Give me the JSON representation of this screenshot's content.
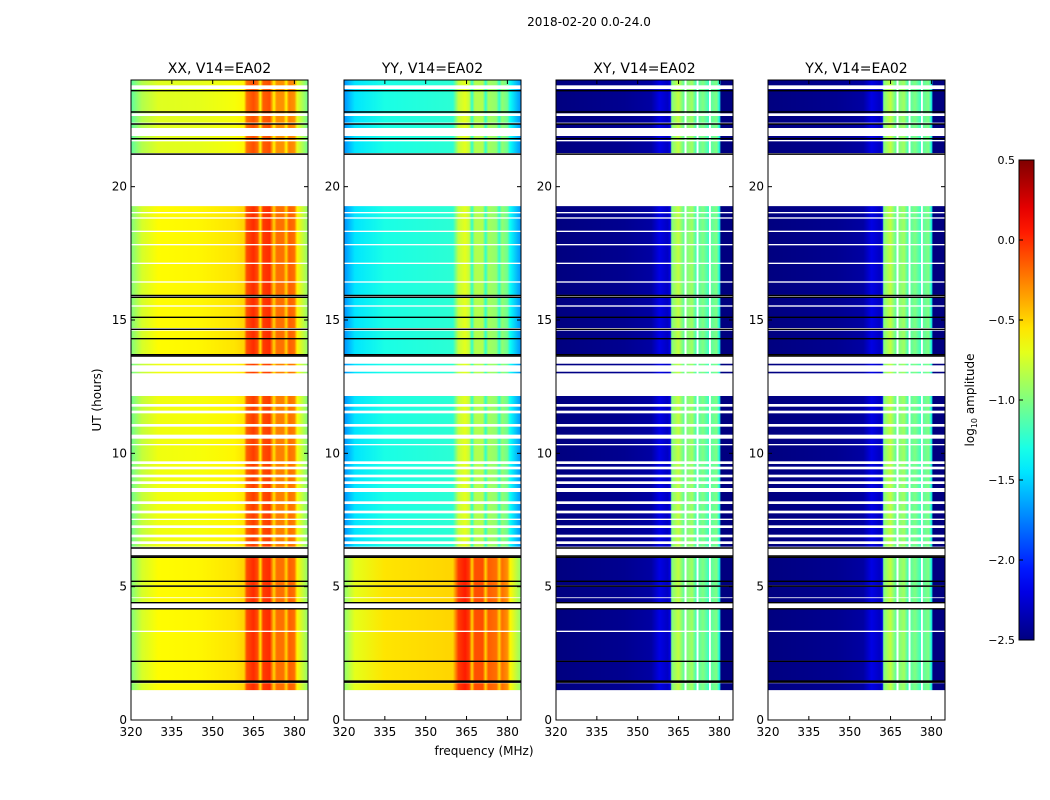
{
  "chart_data": {
    "type": "heatmap",
    "title": "2018-02-20 0.0-24.0",
    "xlabel": "frequency (MHz)",
    "ylabel": "UT (hours)",
    "xlim": [
      320,
      385
    ],
    "ylim": [
      0,
      24
    ],
    "xticks": [
      320,
      335,
      350,
      365,
      380
    ],
    "xtick_labels": [
      "320",
      "335",
      "350",
      "365",
      "380"
    ],
    "yticks": [
      0,
      5,
      10,
      15,
      20
    ],
    "ytick_labels": [
      "0",
      "5",
      "10",
      "15",
      "20"
    ],
    "colorbar": {
      "label_main": "log",
      "label_sub": "10",
      "label_rest": " amplitude",
      "vmin": -2.5,
      "vmax": 0.5,
      "colormap": "jet",
      "ticks": [
        0.5,
        0.0,
        -0.5,
        -1.0,
        -1.5,
        -2.0,
        -2.5
      ],
      "tick_labels": [
        "0.5",
        "0.0",
        "−0.5",
        "−1.0",
        "−1.5",
        "−2.0",
        "−2.5"
      ]
    },
    "data_segments_hours": [
      [
        1.12,
        1.38
      ],
      [
        1.48,
        2.2
      ],
      [
        2.22,
        3.3
      ],
      [
        3.35,
        4.16
      ],
      [
        4.42,
        4.57
      ],
      [
        4.6,
        5.0
      ],
      [
        5.05,
        6.1
      ],
      [
        6.5,
        6.6
      ],
      [
        6.7,
        6.85
      ],
      [
        6.95,
        7.2
      ],
      [
        7.3,
        7.5
      ],
      [
        7.55,
        7.75
      ],
      [
        7.85,
        8.1
      ],
      [
        8.2,
        8.55
      ],
      [
        8.7,
        8.85
      ],
      [
        8.95,
        9.1
      ],
      [
        9.2,
        9.4
      ],
      [
        9.5,
        9.6
      ],
      [
        9.7,
        10.3
      ],
      [
        10.35,
        10.55
      ],
      [
        10.7,
        11.0
      ],
      [
        11.1,
        11.5
      ],
      [
        11.6,
        11.75
      ],
      [
        11.85,
        12.15
      ],
      [
        13.0,
        13.06
      ],
      [
        13.3,
        13.36
      ],
      [
        13.72,
        14.6
      ],
      [
        14.7,
        15.5
      ],
      [
        15.55,
        15.86
      ],
      [
        15.94,
        16.4
      ],
      [
        16.45,
        17.1
      ],
      [
        17.15,
        17.8
      ],
      [
        17.85,
        18.3
      ],
      [
        18.35,
        18.8
      ],
      [
        18.85,
        19.0
      ],
      [
        19.05,
        19.27
      ],
      [
        21.26,
        21.7
      ],
      [
        21.75,
        21.9
      ],
      [
        22.2,
        22.35
      ],
      [
        22.4,
        22.65
      ],
      [
        22.75,
        23.6
      ],
      [
        23.62,
        23.66
      ],
      [
        23.8,
        24.0
      ]
    ],
    "black_lines_hours": [
      1.42,
      1.46,
      2.2,
      4.17,
      4.4,
      5.02,
      5.2,
      6.1,
      6.15,
      6.45,
      13.65,
      13.7,
      14.3,
      14.65,
      15.1,
      15.85,
      15.92,
      21.22,
      21.8,
      22.35,
      22.8,
      23.6
    ],
    "panels": [
      {
        "title": "XX, V14=EA02",
        "profile": [
          [
            320,
            -1.0
          ],
          [
            324,
            -0.75
          ],
          [
            330,
            -0.62
          ],
          [
            345,
            -0.6
          ],
          [
            358,
            -0.55
          ],
          [
            361.5,
            -0.5
          ],
          [
            362.5,
            -0.1
          ],
          [
            365,
            0.0
          ],
          [
            366.5,
            -0.1
          ],
          [
            367.5,
            -0.55
          ],
          [
            368.5,
            -0.05
          ],
          [
            371,
            0.0
          ],
          [
            372.5,
            -0.5
          ],
          [
            373.5,
            -0.2
          ],
          [
            376,
            -0.2
          ],
          [
            377,
            -0.5
          ],
          [
            378,
            -0.15
          ],
          [
            380,
            -0.2
          ],
          [
            381,
            -0.6
          ],
          [
            385,
            -0.95
          ]
        ],
        "time_offsets": [
          {
            "from": 6.2,
            "to": 13.6,
            "offset": -0.05
          },
          {
            "from": 21.0,
            "to": 24.0,
            "offset": -0.1
          }
        ]
      },
      {
        "title": "YY, V14=EA02",
        "profile": [
          [
            320,
            -0.95
          ],
          [
            324,
            -0.7
          ],
          [
            335,
            -0.55
          ],
          [
            350,
            -0.52
          ],
          [
            360,
            -0.5
          ],
          [
            362,
            -0.05
          ],
          [
            364.5,
            0.05
          ],
          [
            366,
            -0.05
          ],
          [
            367,
            -0.5
          ],
          [
            368,
            -0.1
          ],
          [
            371,
            -0.1
          ],
          [
            372,
            -0.5
          ],
          [
            373,
            -0.15
          ],
          [
            376,
            -0.2
          ],
          [
            377,
            -0.5
          ],
          [
            378,
            -0.2
          ],
          [
            380,
            -0.3
          ],
          [
            381,
            -0.6
          ],
          [
            385,
            -0.95
          ]
        ],
        "time_offsets": [
          {
            "from": 6.2,
            "to": 24.0,
            "offset": -0.75
          }
        ]
      },
      {
        "title": "XY, V14=EA02",
        "profile": [
          [
            320,
            -2.5
          ],
          [
            345,
            -2.45
          ],
          [
            355,
            -2.4
          ],
          [
            358,
            -2.2
          ],
          [
            361,
            -2.3
          ],
          [
            362,
            -2.2
          ],
          [
            362.5,
            -1.0
          ],
          [
            365,
            -0.8
          ],
          [
            367.1,
            -1.1
          ],
          [
            367.2,
            null
          ],
          [
            367.9,
            null
          ],
          [
            368,
            -1.0
          ],
          [
            370,
            -0.9
          ],
          [
            371.6,
            -1.2
          ],
          [
            371.7,
            null
          ],
          [
            372.3,
            null
          ],
          [
            372.4,
            -1.1
          ],
          [
            374,
            -1.0
          ],
          [
            376.1,
            -1.2
          ],
          [
            376.2,
            null
          ],
          [
            376.8,
            null
          ],
          [
            376.9,
            -1.1
          ],
          [
            379,
            -1.0
          ],
          [
            380,
            -1.3
          ],
          [
            380.6,
            -2.5
          ],
          [
            385,
            -2.5
          ]
        ],
        "time_offsets": []
      },
      {
        "title": "YX, V14=EA02",
        "profile": [
          [
            320,
            -2.5
          ],
          [
            345,
            -2.45
          ],
          [
            355,
            -2.4
          ],
          [
            358,
            -2.2
          ],
          [
            361,
            -2.3
          ],
          [
            362,
            -2.2
          ],
          [
            362.5,
            -1.0
          ],
          [
            365,
            -0.8
          ],
          [
            367.1,
            -1.1
          ],
          [
            367.2,
            null
          ],
          [
            367.9,
            null
          ],
          [
            368,
            -1.0
          ],
          [
            370,
            -0.9
          ],
          [
            371.6,
            -1.2
          ],
          [
            371.7,
            null
          ],
          [
            372.3,
            null
          ],
          [
            372.4,
            -1.1
          ],
          [
            374,
            -1.0
          ],
          [
            376.1,
            -1.2
          ],
          [
            376.2,
            null
          ],
          [
            376.8,
            null
          ],
          [
            376.9,
            -1.1
          ],
          [
            379,
            -1.0
          ],
          [
            380,
            -1.3
          ],
          [
            380.6,
            -2.5
          ],
          [
            385,
            -2.5
          ]
        ],
        "time_offsets": []
      }
    ]
  }
}
